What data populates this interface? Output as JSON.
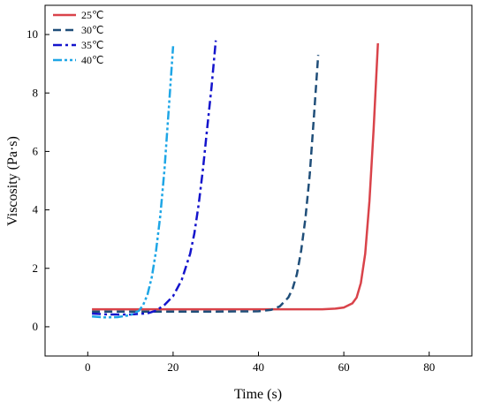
{
  "chart_data": {
    "type": "line",
    "title": "",
    "xlabel": "Time (s)",
    "ylabel": "Viscosity (Pa·s)",
    "xlim": [
      -10,
      90
    ],
    "ylim": [
      -1,
      11
    ],
    "xticks": [
      0,
      20,
      40,
      60,
      80
    ],
    "yticks": [
      0,
      2,
      4,
      6,
      8,
      10
    ],
    "grid": false,
    "legend": "top-left",
    "series": [
      {
        "name": "25℃",
        "color": "#d9434a",
        "dash": "solid",
        "x": [
          1,
          10,
          20,
          30,
          40,
          50,
          55,
          58,
          60,
          62,
          63,
          64,
          65,
          66,
          67,
          68
        ],
        "y": [
          0.6,
          0.6,
          0.6,
          0.6,
          0.6,
          0.6,
          0.6,
          0.62,
          0.66,
          0.8,
          1.0,
          1.5,
          2.5,
          4.3,
          6.8,
          9.7
        ]
      },
      {
        "name": "30℃",
        "color": "#1f4e79",
        "dash": "dash",
        "x": [
          1,
          10,
          20,
          30,
          40,
          43,
          45,
          47,
          48,
          49,
          50,
          51,
          52,
          53,
          54
        ],
        "y": [
          0.52,
          0.52,
          0.52,
          0.52,
          0.53,
          0.58,
          0.7,
          1.0,
          1.3,
          1.8,
          2.6,
          3.7,
          5.2,
          7.2,
          9.3
        ]
      },
      {
        "name": "35℃",
        "color": "#1414cc",
        "dash": "dashdot",
        "x": [
          1,
          5,
          10,
          14,
          16,
          18,
          20,
          22,
          24,
          25,
          26,
          27,
          28,
          29,
          30
        ],
        "y": [
          0.45,
          0.42,
          0.42,
          0.46,
          0.55,
          0.75,
          1.05,
          1.6,
          2.5,
          3.2,
          4.2,
          5.4,
          6.8,
          8.2,
          9.8
        ]
      },
      {
        "name": "40℃",
        "color": "#1ea6e6",
        "dash": "dashdotdot",
        "x": [
          1,
          4,
          7,
          10,
          12,
          13,
          14,
          15,
          16,
          17,
          18,
          19,
          20
        ],
        "y": [
          0.35,
          0.32,
          0.33,
          0.4,
          0.55,
          0.75,
          1.1,
          1.7,
          2.6,
          3.8,
          5.4,
          7.5,
          9.6
        ]
      }
    ]
  }
}
